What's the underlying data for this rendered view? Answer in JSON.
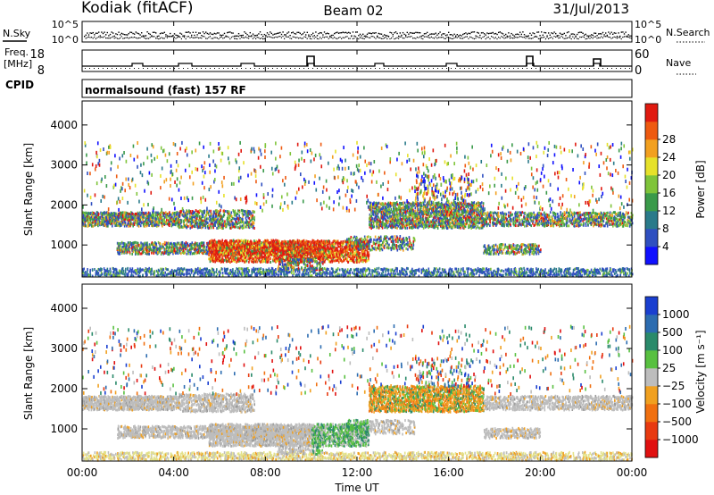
{
  "header": {
    "radar": "Kodiak (fitACF)",
    "beam": "Beam 02",
    "date": "31/Jul/2013"
  },
  "small_panels": {
    "nsky_label": "N.Sky",
    "nsearch_label": "N.Search",
    "nsky_ticks": [
      "10^5",
      "10^0"
    ],
    "nsearch_ticks": [
      "10^5",
      "10^0"
    ],
    "freq_label_1": "Freq.",
    "freq_label_2": "[MHz]",
    "freq_ticks": [
      "18",
      "8"
    ],
    "nave_label": "Nave",
    "nave_ticks": [
      "60",
      "0"
    ],
    "cpid_label": "CPID",
    "cpid_text": "normalsound (fast) 157 RF"
  },
  "chart_data": [
    {
      "type": "heatmap",
      "name": "power",
      "ylabel": "Slant Range [km]",
      "xlabel": "",
      "x_ticks": [
        "00:00",
        "04:00",
        "08:00",
        "12:00",
        "16:00",
        "20:00",
        "00:00"
      ],
      "y_ticks": [
        "1000",
        "2000",
        "3000",
        "4000"
      ],
      "ylim": [
        200,
        4600
      ],
      "colorbar": {
        "label": "Power [dB]",
        "ticks": [
          "4",
          "8",
          "12",
          "16",
          "20",
          "24",
          "28"
        ],
        "colors": [
          "#1010ff",
          "#2f4fc0",
          "#2a7a8a",
          "#3a9a4a",
          "#7fc43a",
          "#e6e12a",
          "#f2a020",
          "#ee5a10",
          "#e01a10"
        ]
      }
    },
    {
      "type": "heatmap",
      "name": "velocity",
      "ylabel": "Slant Range [km]",
      "xlabel": "Time UT",
      "x_ticks": [
        "00:00",
        "04:00",
        "08:00",
        "12:00",
        "16:00",
        "20:00",
        "00:00"
      ],
      "y_ticks": [
        "1000",
        "2000",
        "3000",
        "4000"
      ],
      "ylim": [
        200,
        4600
      ],
      "colorbar": {
        "label": "Velocity [m s⁻¹]",
        "ticks": [
          "1000",
          "500",
          "100",
          "25",
          "−25",
          "−100",
          "−500",
          "−1000"
        ],
        "colors": [
          "#1a3fd0",
          "#2c6cb0",
          "#2a8a6a",
          "#58c040",
          "#bdbdbd",
          "#f0a020",
          "#f07010",
          "#e83a10",
          "#e01010"
        ]
      }
    }
  ]
}
